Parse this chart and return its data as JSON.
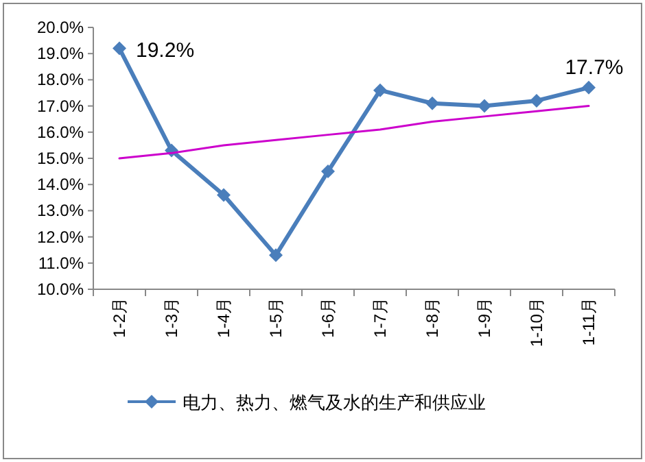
{
  "chart_data": {
    "type": "line",
    "categories": [
      "1-2月",
      "1-3月",
      "1-4月",
      "1-5月",
      "1-6月",
      "1-7月",
      "1-8月",
      "1-9月",
      "1-10月",
      "1-11月"
    ],
    "series": [
      {
        "name": "电力、热力、燃气及水的生产和供应业",
        "color": "#4a7ebb",
        "marker": "diamond",
        "values": [
          19.2,
          15.3,
          13.6,
          11.3,
          14.5,
          17.6,
          17.1,
          17.0,
          17.2,
          17.7
        ],
        "value_labels": [
          "19.2%",
          null,
          null,
          null,
          null,
          null,
          null,
          null,
          null,
          "17.7%"
        ]
      },
      {
        "type": "line",
        "color": "#cc00cc",
        "marker": "none",
        "values": [
          15.0,
          15.2,
          15.5,
          15.7,
          15.9,
          16.1,
          16.4,
          16.6,
          16.8,
          17.0
        ]
      }
    ],
    "ylim": [
      10,
      20
    ],
    "yticks": [
      {
        "value": 10,
        "label": "10.0%"
      },
      {
        "value": 11,
        "label": "11.0%"
      },
      {
        "value": 12,
        "label": "12.0%"
      },
      {
        "value": 13,
        "label": "13.0%"
      },
      {
        "value": 14,
        "label": "14.0%"
      },
      {
        "value": 15,
        "label": "15.0%"
      },
      {
        "value": 16,
        "label": "16.0%"
      },
      {
        "value": 17,
        "label": "17.0%"
      },
      {
        "value": 18,
        "label": "18.0%"
      },
      {
        "value": 19,
        "label": "19.0%"
      },
      {
        "value": 20,
        "label": "20.0%"
      }
    ],
    "grid": false,
    "legend": "bottom"
  }
}
